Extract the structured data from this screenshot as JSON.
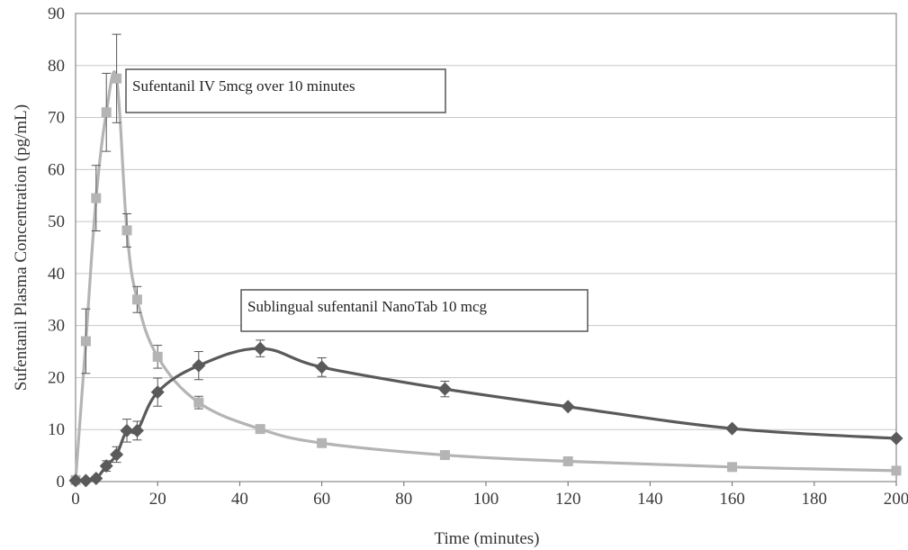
{
  "chart_data": {
    "type": "line",
    "title": "",
    "xlabel": "Time (minutes)",
    "ylabel": "Sufentanil  Plasma Concentration (pg/mL)",
    "xlim": [
      0,
      200
    ],
    "ylim": [
      0,
      90
    ],
    "xticks": [
      0,
      20,
      40,
      60,
      80,
      100,
      120,
      140,
      160,
      180,
      200
    ],
    "yticks": [
      0,
      10,
      20,
      30,
      40,
      50,
      60,
      70,
      80,
      90
    ],
    "grid": "horizontal",
    "legend": "none",
    "series": [
      {
        "name": "Sufentanil IV 5mcg over 10 minutes",
        "color": "#b4b4b4",
        "marker": "square",
        "points": [
          {
            "x": 0,
            "y": 0.3
          },
          {
            "x": 2.5,
            "y": 27,
            "err": 6.2
          },
          {
            "x": 5,
            "y": 54.5,
            "err": 6.3
          },
          {
            "x": 7.5,
            "y": 71,
            "err": 7.5
          },
          {
            "x": 10,
            "y": 77.5,
            "err": 8.5
          },
          {
            "x": 12.5,
            "y": 48.3,
            "err": 3.2
          },
          {
            "x": 15,
            "y": 35,
            "err": 2.5
          },
          {
            "x": 20,
            "y": 24,
            "err": 2.2
          },
          {
            "x": 30,
            "y": 15.2,
            "err": 1.2
          },
          {
            "x": 45,
            "y": 10.1,
            "err": 0.5
          },
          {
            "x": 60,
            "y": 7.4
          },
          {
            "x": 90,
            "y": 5.1
          },
          {
            "x": 120,
            "y": 3.9
          },
          {
            "x": 160,
            "y": 2.8
          },
          {
            "x": 200,
            "y": 2.1
          }
        ]
      },
      {
        "name": "Sublingual sufentanil NanoTab 10 mcg",
        "color": "#5a5a5a",
        "marker": "diamond",
        "points": [
          {
            "x": 0,
            "y": 0.2
          },
          {
            "x": 2.5,
            "y": 0.2
          },
          {
            "x": 5,
            "y": 0.6
          },
          {
            "x": 7.5,
            "y": 3,
            "err": 1
          },
          {
            "x": 10,
            "y": 5.2,
            "err": 1.5
          },
          {
            "x": 12.5,
            "y": 9.8,
            "err": 2.2
          },
          {
            "x": 15,
            "y": 9.8,
            "err": 1.8
          },
          {
            "x": 20,
            "y": 17.2,
            "err": 2.7
          },
          {
            "x": 30,
            "y": 22.3,
            "err": 2.7
          },
          {
            "x": 45,
            "y": 25.6,
            "err": 1.6
          },
          {
            "x": 60,
            "y": 22,
            "err": 1.8
          },
          {
            "x": 90,
            "y": 17.8,
            "err": 1.5
          },
          {
            "x": 120,
            "y": 14.4
          },
          {
            "x": 160,
            "y": 10.2
          },
          {
            "x": 200,
            "y": 8.3
          }
        ]
      }
    ],
    "annotations": [
      {
        "text": "Sufentanil IV 5mcg over 10 minutes"
      },
      {
        "text": "Sublingual sufentanil NanoTab 10 mcg"
      }
    ]
  }
}
